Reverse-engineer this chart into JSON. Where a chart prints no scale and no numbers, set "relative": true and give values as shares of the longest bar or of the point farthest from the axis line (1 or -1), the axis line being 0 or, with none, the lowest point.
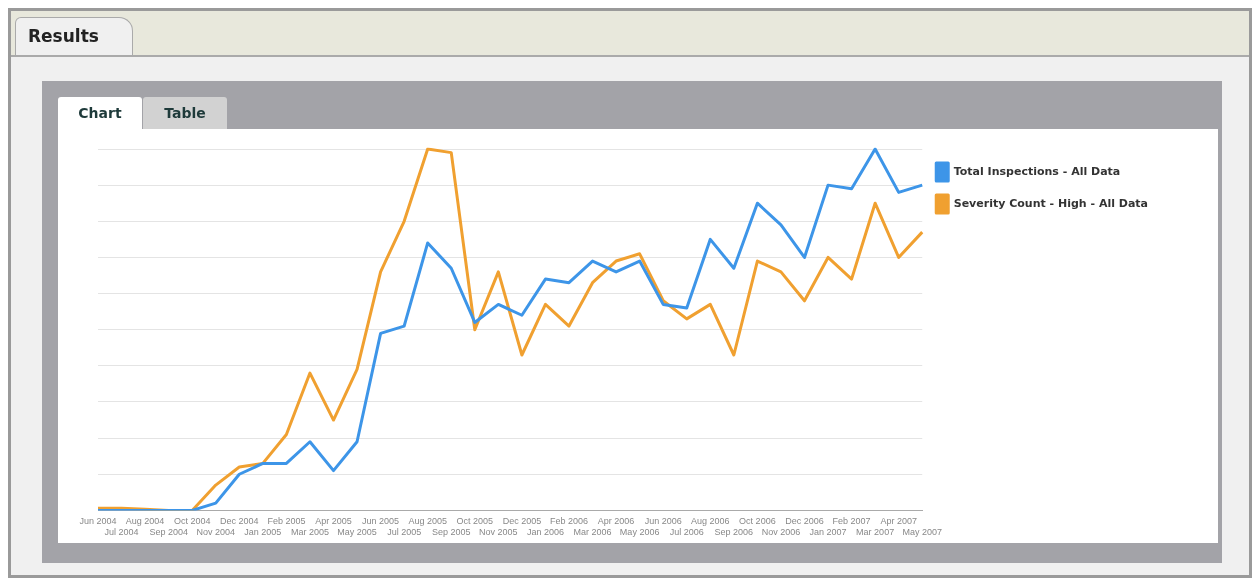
{
  "chart_data": {
    "type": "line",
    "title": "Results",
    "annotations": [
      "Chart",
      "Table"
    ],
    "categories": [
      "Jun 2004",
      "Jul 2004",
      "Aug 2004",
      "Sep 2004",
      "Oct 2004",
      "Nov 2004",
      "Dec 2004",
      "Jan 2005",
      "Feb 2005",
      "Mar 2005",
      "Apr 2005",
      "May 2005",
      "Jun 2005",
      "Jul 2005",
      "Aug 2005",
      "Sep 2005",
      "Oct 2005",
      "Nov 2005",
      "Dec 2005",
      "Jan 2006",
      "Feb 2006",
      "Mar 2006",
      "Apr 2006",
      "May 2006",
      "Jun 2006",
      "Jul 2006",
      "Aug 2006",
      "Sep 2006",
      "Oct 2006",
      "Nov 2006",
      "Dec 2006",
      "Jan 2007",
      "Feb 2007",
      "Mar 2007",
      "Apr 2007",
      "May 2007"
    ],
    "relative": true,
    "grid": "y",
    "legend": "top right",
    "marker": "none",
    "line_style": "solid",
    "series": [
      {
        "name": "Total Inspections - All Data",
        "color": "#3d95e8",
        "values": [
          0,
          0,
          0,
          0,
          0,
          0.02,
          0.1,
          0.13,
          0.13,
          0.19,
          0.11,
          0.19,
          0.49,
          0.51,
          0.74,
          0.67,
          0.52,
          0.57,
          0.54,
          0.64,
          0.63,
          0.69,
          0.66,
          0.69,
          0.57,
          0.56,
          0.75,
          0.67,
          0.85,
          0.79,
          0.7,
          0.9,
          0.89,
          1,
          0.88,
          0.9
        ]
      },
      {
        "name": "Severity Count - High - All Data",
        "color": "#f0a030",
        "values": [
          0.006,
          0.006,
          0.003,
          0,
          0,
          0.07,
          0.12,
          0.13,
          0.21,
          0.38,
          0.25,
          0.39,
          0.66,
          0.8,
          1,
          0.99,
          0.5,
          0.66,
          0.43,
          0.57,
          0.51,
          0.63,
          0.69,
          0.71,
          0.58,
          0.53,
          0.57,
          0.43,
          0.69,
          0.66,
          0.58,
          0.7,
          0.64,
          0.85,
          0.7,
          0.77
        ]
      }
    ]
  }
}
